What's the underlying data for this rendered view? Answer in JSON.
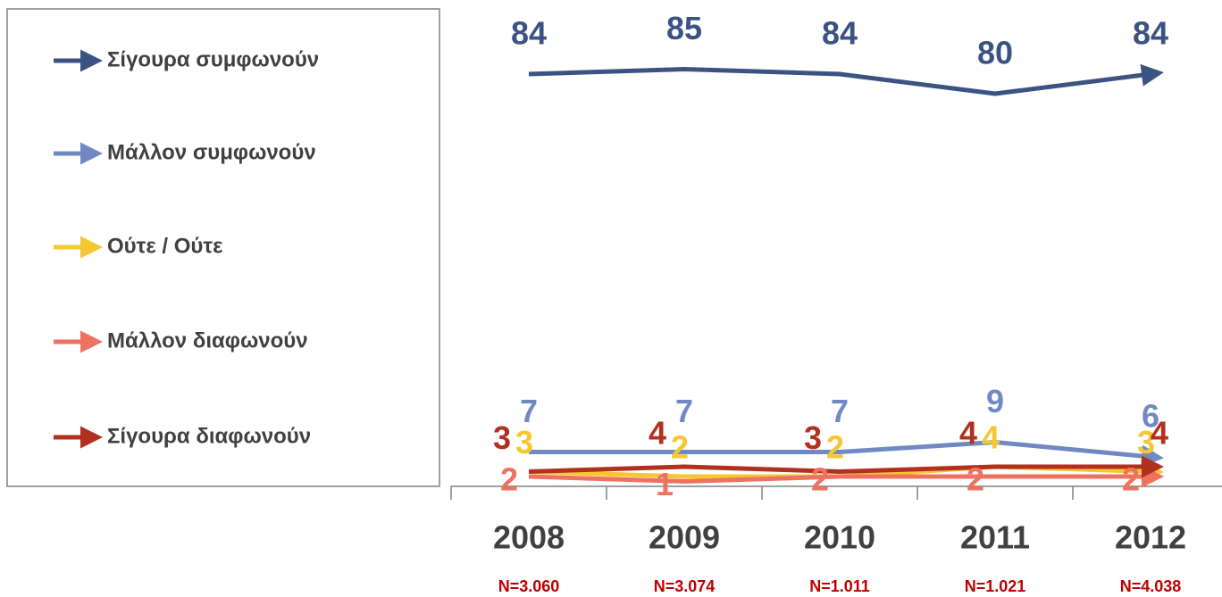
{
  "chart_data": {
    "type": "line",
    "categories": [
      "2008",
      "2009",
      "2010",
      "2011",
      "2012"
    ],
    "category_notes": [
      "N=3.060",
      "N=3.074",
      "N=1.011",
      "N=1.021",
      "N=4.038"
    ],
    "ylim": [
      0,
      90
    ],
    "series": [
      {
        "name": "Σίγουρα συμφωνούν",
        "color": "#3b5282",
        "values": [
          84,
          85,
          84,
          80,
          84
        ]
      },
      {
        "name": "Μάλλον συμφωνούν",
        "color": "#7189c2",
        "values": [
          7,
          7,
          7,
          9,
          6
        ]
      },
      {
        "name": "Ούτε / Ούτε",
        "color": "#f5c730",
        "values": [
          3,
          2,
          2,
          4,
          3
        ]
      },
      {
        "name": "Μάλλον διαφωνούν",
        "color": "#ee7262",
        "values": [
          2,
          1,
          2,
          2,
          2
        ]
      },
      {
        "name": "Σίγουρα διαφωνούν",
        "color": "#b2301f",
        "values": [
          3,
          4,
          3,
          4,
          4
        ]
      }
    ]
  }
}
